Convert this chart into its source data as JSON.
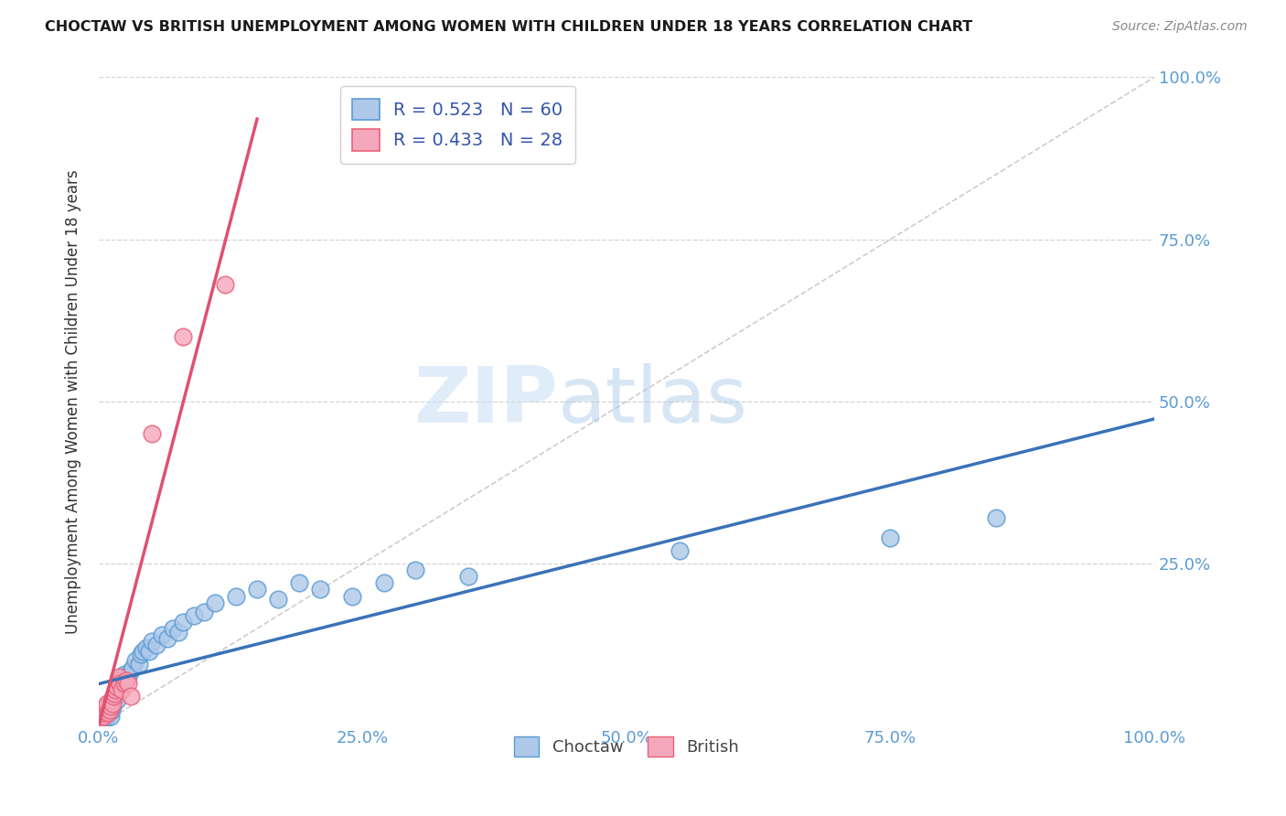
{
  "title": "CHOCTAW VS BRITISH UNEMPLOYMENT AMONG WOMEN WITH CHILDREN UNDER 18 YEARS CORRELATION CHART",
  "source": "Source: ZipAtlas.com",
  "ylabel": "Unemployment Among Women with Children Under 18 years",
  "watermark_zip": "ZIP",
  "watermark_atlas": "atlas",
  "choctaw_R": 0.523,
  "choctaw_N": 60,
  "british_R": 0.433,
  "british_N": 28,
  "choctaw_color": "#adc8e8",
  "british_color": "#f5a8bc",
  "choctaw_edge_color": "#5b9bd5",
  "british_edge_color": "#e8627a",
  "choctaw_line_color": "#3a72b8",
  "british_line_color": "#e05070",
  "diagonal_color": "#c0c0c0",
  "right_tick_color": "#5b9bd5",
  "x_tick_color": "#5b9bd5",
  "choctaw_x": [
    0.001,
    0.002,
    0.003,
    0.004,
    0.005,
    0.005,
    0.006,
    0.007,
    0.007,
    0.008,
    0.008,
    0.009,
    0.009,
    0.01,
    0.01,
    0.011,
    0.012,
    0.012,
    0.013,
    0.014,
    0.015,
    0.016,
    0.017,
    0.018,
    0.019,
    0.02,
    0.022,
    0.024,
    0.026,
    0.028,
    0.03,
    0.032,
    0.035,
    0.038,
    0.04,
    0.042,
    0.045,
    0.048,
    0.05,
    0.055,
    0.06,
    0.065,
    0.07,
    0.075,
    0.08,
    0.09,
    0.1,
    0.11,
    0.13,
    0.15,
    0.17,
    0.19,
    0.21,
    0.24,
    0.27,
    0.3,
    0.35,
    0.55,
    0.75,
    0.85
  ],
  "choctaw_y": [
    0.005,
    0.008,
    0.01,
    0.008,
    0.012,
    0.015,
    0.01,
    0.012,
    0.02,
    0.015,
    0.025,
    0.018,
    0.03,
    0.02,
    0.035,
    0.015,
    0.025,
    0.04,
    0.03,
    0.045,
    0.04,
    0.05,
    0.04,
    0.06,
    0.055,
    0.07,
    0.065,
    0.08,
    0.07,
    0.075,
    0.085,
    0.09,
    0.1,
    0.095,
    0.11,
    0.115,
    0.12,
    0.115,
    0.13,
    0.125,
    0.14,
    0.135,
    0.15,
    0.145,
    0.16,
    0.17,
    0.175,
    0.19,
    0.2,
    0.21,
    0.195,
    0.22,
    0.21,
    0.2,
    0.22,
    0.24,
    0.23,
    0.27,
    0.29,
    0.32
  ],
  "british_x": [
    0.001,
    0.002,
    0.003,
    0.004,
    0.005,
    0.006,
    0.007,
    0.008,
    0.009,
    0.01,
    0.011,
    0.012,
    0.013,
    0.014,
    0.015,
    0.016,
    0.017,
    0.018,
    0.019,
    0.02,
    0.022,
    0.024,
    0.026,
    0.028,
    0.03,
    0.05,
    0.08,
    0.12
  ],
  "british_y": [
    0.01,
    0.015,
    0.02,
    0.015,
    0.02,
    0.025,
    0.03,
    0.035,
    0.02,
    0.025,
    0.03,
    0.04,
    0.035,
    0.045,
    0.05,
    0.055,
    0.06,
    0.07,
    0.075,
    0.065,
    0.055,
    0.065,
    0.07,
    0.065,
    0.045,
    0.45,
    0.6,
    0.68
  ],
  "xlim": [
    0,
    1.0
  ],
  "ylim": [
    0,
    1.0
  ],
  "xticks": [
    0,
    0.25,
    0.5,
    0.75,
    1.0
  ],
  "xtick_labels": [
    "0.0%",
    "25.0%",
    "50.0%",
    "75.0%",
    "100.0%"
  ],
  "yticks_right": [
    0.25,
    0.5,
    0.75,
    1.0
  ],
  "ytick_labels_right": [
    "25.0%",
    "50.0%",
    "75.0%",
    "100.0%"
  ]
}
